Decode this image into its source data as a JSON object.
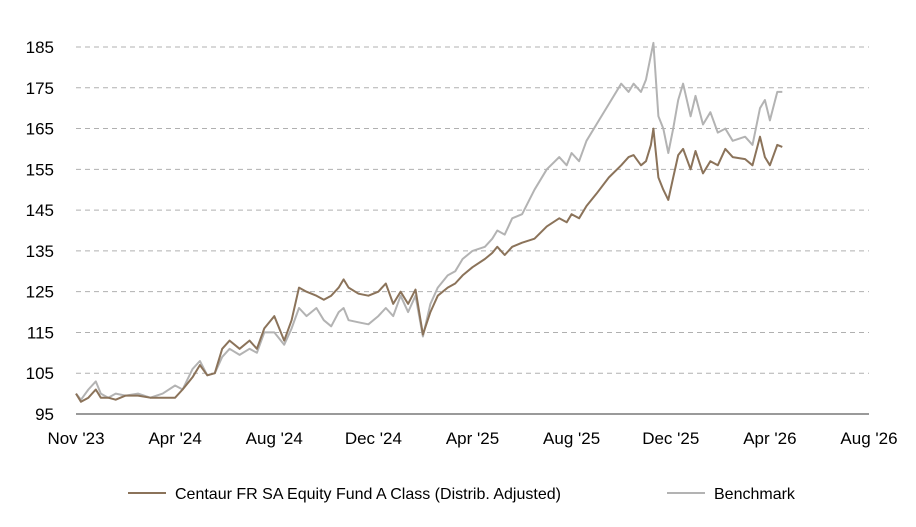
{
  "colors": {
    "fund": "#8b735a",
    "benchmark": "#b3b3b3",
    "grid": "#b0b0b0",
    "axis": "#9a9a9a"
  },
  "chart_data": {
    "type": "line",
    "title": "",
    "xlabel": "",
    "ylabel": "",
    "ylim": [
      95,
      185
    ],
    "y_ticks": [
      95,
      105,
      115,
      125,
      135,
      145,
      155,
      165,
      175,
      185
    ],
    "x_ticks": [
      "Nov '23",
      "Apr '24",
      "Aug '24",
      "Dec '24",
      "Apr '25",
      "Aug '25",
      "Dec '25",
      "Apr '26",
      "Aug '26"
    ],
    "grid": "horizontal dashed",
    "legend_position": "bottom",
    "series": [
      {
        "name": "Centaur FR SA Equity Fund A Class (Distrib. Adjusted)",
        "color_key": "fund",
        "points": [
          [
            0,
            100
          ],
          [
            0.2,
            98
          ],
          [
            0.5,
            99
          ],
          [
            0.8,
            101
          ],
          [
            1.0,
            99
          ],
          [
            1.3,
            99
          ],
          [
            1.6,
            98.5
          ],
          [
            2.0,
            99.5
          ],
          [
            2.5,
            99.5
          ],
          [
            3.0,
            99
          ],
          [
            3.5,
            99
          ],
          [
            4.0,
            99
          ],
          [
            4.3,
            101
          ],
          [
            4.7,
            104
          ],
          [
            5.0,
            107
          ],
          [
            5.3,
            104.5
          ],
          [
            5.6,
            105
          ],
          [
            5.9,
            111
          ],
          [
            6.2,
            113
          ],
          [
            6.6,
            111
          ],
          [
            7.0,
            113
          ],
          [
            7.3,
            111
          ],
          [
            7.6,
            116
          ],
          [
            8.0,
            119
          ],
          [
            8.4,
            113
          ],
          [
            8.7,
            118
          ],
          [
            9.0,
            126
          ],
          [
            9.3,
            125
          ],
          [
            9.7,
            124
          ],
          [
            10.0,
            123
          ],
          [
            10.3,
            124
          ],
          [
            10.6,
            126
          ],
          [
            10.8,
            128
          ],
          [
            11.0,
            126
          ],
          [
            11.4,
            124.5
          ],
          [
            11.8,
            124
          ],
          [
            12.2,
            125
          ],
          [
            12.5,
            127
          ],
          [
            12.8,
            122
          ],
          [
            13.1,
            125
          ],
          [
            13.4,
            122
          ],
          [
            13.7,
            125.5
          ],
          [
            14.0,
            114.5
          ],
          [
            14.3,
            120
          ],
          [
            14.6,
            124
          ],
          [
            15.0,
            126
          ],
          [
            15.3,
            127
          ],
          [
            15.6,
            129
          ],
          [
            16.0,
            131
          ],
          [
            16.5,
            133
          ],
          [
            16.8,
            134.5
          ],
          [
            17.0,
            136
          ],
          [
            17.3,
            134
          ],
          [
            17.6,
            136
          ],
          [
            18.0,
            137
          ],
          [
            18.5,
            138
          ],
          [
            19.0,
            141
          ],
          [
            19.5,
            143
          ],
          [
            19.8,
            142
          ],
          [
            20.0,
            144
          ],
          [
            20.3,
            143
          ],
          [
            20.6,
            146
          ],
          [
            21.0,
            149
          ],
          [
            21.5,
            153
          ],
          [
            22.0,
            156
          ],
          [
            22.3,
            158
          ],
          [
            22.5,
            158.5
          ],
          [
            22.8,
            156
          ],
          [
            23.0,
            157
          ],
          [
            23.2,
            161
          ],
          [
            23.3,
            165
          ],
          [
            23.5,
            153
          ],
          [
            23.7,
            150
          ],
          [
            23.9,
            147.5
          ],
          [
            24.1,
            153
          ],
          [
            24.3,
            158.5
          ],
          [
            24.5,
            160
          ],
          [
            24.8,
            155
          ],
          [
            25.0,
            159.5
          ],
          [
            25.3,
            154
          ],
          [
            25.6,
            157
          ],
          [
            25.9,
            156
          ],
          [
            26.2,
            160
          ],
          [
            26.5,
            158
          ],
          [
            27.0,
            157.5
          ],
          [
            27.3,
            156
          ],
          [
            27.6,
            163
          ],
          [
            27.8,
            158
          ],
          [
            28.0,
            156
          ],
          [
            28.3,
            161
          ],
          [
            28.5,
            160.5
          ]
        ]
      },
      {
        "name": "Benchmark",
        "color_key": "benchmark",
        "points": [
          [
            0,
            100
          ],
          [
            0.2,
            98.5
          ],
          [
            0.5,
            101
          ],
          [
            0.8,
            103
          ],
          [
            1.0,
            100
          ],
          [
            1.3,
            99
          ],
          [
            1.6,
            100
          ],
          [
            2.0,
            99.5
          ],
          [
            2.5,
            100
          ],
          [
            3.0,
            99
          ],
          [
            3.5,
            100
          ],
          [
            4.0,
            102
          ],
          [
            4.3,
            101
          ],
          [
            4.7,
            106
          ],
          [
            5.0,
            108
          ],
          [
            5.3,
            104.5
          ],
          [
            5.6,
            105
          ],
          [
            5.9,
            109
          ],
          [
            6.2,
            111
          ],
          [
            6.6,
            109.5
          ],
          [
            7.0,
            111
          ],
          [
            7.3,
            110
          ],
          [
            7.6,
            115
          ],
          [
            8.0,
            115
          ],
          [
            8.4,
            112
          ],
          [
            8.7,
            116
          ],
          [
            9.0,
            121
          ],
          [
            9.3,
            119
          ],
          [
            9.7,
            121
          ],
          [
            10.0,
            118
          ],
          [
            10.3,
            116.5
          ],
          [
            10.6,
            120
          ],
          [
            10.8,
            121
          ],
          [
            11.0,
            118
          ],
          [
            11.4,
            117.5
          ],
          [
            11.8,
            117
          ],
          [
            12.2,
            119
          ],
          [
            12.5,
            121
          ],
          [
            12.8,
            119
          ],
          [
            13.1,
            124
          ],
          [
            13.4,
            120
          ],
          [
            13.7,
            124
          ],
          [
            14.0,
            114
          ],
          [
            14.3,
            122
          ],
          [
            14.6,
            126
          ],
          [
            15.0,
            129
          ],
          [
            15.3,
            130
          ],
          [
            15.6,
            133
          ],
          [
            16.0,
            135
          ],
          [
            16.5,
            136
          ],
          [
            16.8,
            138
          ],
          [
            17.0,
            140
          ],
          [
            17.3,
            139
          ],
          [
            17.6,
            143
          ],
          [
            18.0,
            144
          ],
          [
            18.5,
            150
          ],
          [
            19.0,
            155
          ],
          [
            19.5,
            158
          ],
          [
            19.8,
            156
          ],
          [
            20.0,
            159
          ],
          [
            20.3,
            157
          ],
          [
            20.6,
            162
          ],
          [
            21.0,
            166
          ],
          [
            21.5,
            171
          ],
          [
            22.0,
            176
          ],
          [
            22.3,
            174
          ],
          [
            22.5,
            176
          ],
          [
            22.8,
            174
          ],
          [
            23.0,
            177
          ],
          [
            23.2,
            183
          ],
          [
            23.3,
            186
          ],
          [
            23.5,
            168
          ],
          [
            23.7,
            165
          ],
          [
            23.9,
            159
          ],
          [
            24.1,
            165
          ],
          [
            24.3,
            172
          ],
          [
            24.5,
            176
          ],
          [
            24.8,
            168
          ],
          [
            25.0,
            173
          ],
          [
            25.3,
            166
          ],
          [
            25.6,
            169
          ],
          [
            25.9,
            164
          ],
          [
            26.2,
            165
          ],
          [
            26.5,
            162
          ],
          [
            27.0,
            163
          ],
          [
            27.3,
            161
          ],
          [
            27.6,
            170
          ],
          [
            27.8,
            172
          ],
          [
            28.0,
            167
          ],
          [
            28.3,
            174
          ],
          [
            28.5,
            174
          ]
        ]
      }
    ]
  }
}
